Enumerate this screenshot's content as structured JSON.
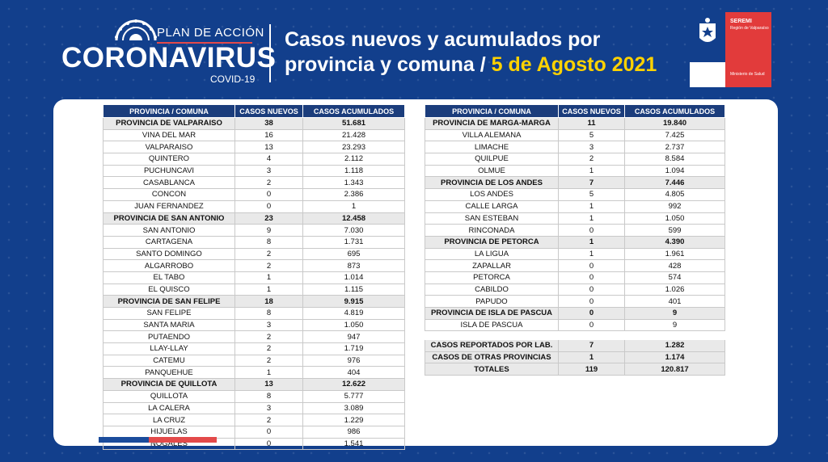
{
  "header": {
    "logo": {
      "plan": "PLAN DE ACCIÓN",
      "name": "CORONAVIRUS",
      "sub": "COVID-19"
    },
    "title_line1": "Casos nuevos y acumulados por",
    "title_line2_prefix": "provincia y comuna / ",
    "title_date": "5 de Agosto 2021",
    "gov": {
      "seremi": "SEREMI",
      "region": "Región de Valparaíso",
      "ministry": "Ministerio de Salud"
    },
    "colors": {
      "background": "#123f8c",
      "date": "#ffd200",
      "header_row": "#1b3d7c",
      "red": "#e34a4a"
    }
  },
  "columns": [
    "PROVINCIA / COMUNA",
    "CASOS NUEVOS",
    "CASOS ACUMULADOS"
  ],
  "left_table": [
    {
      "name": "PROVINCIA DE VALPARAISO",
      "new": "38",
      "total": "51.681",
      "province": true
    },
    {
      "name": "VINA DEL MAR",
      "new": "16",
      "total": "21.428"
    },
    {
      "name": "VALPARAISO",
      "new": "13",
      "total": "23.293"
    },
    {
      "name": "QUINTERO",
      "new": "4",
      "total": "2.112"
    },
    {
      "name": "PUCHUNCAVI",
      "new": "3",
      "total": "1.118"
    },
    {
      "name": "CASABLANCA",
      "new": "2",
      "total": "1.343"
    },
    {
      "name": "CONCON",
      "new": "0",
      "total": "2.386"
    },
    {
      "name": "JUAN FERNANDEZ",
      "new": "0",
      "total": "1"
    },
    {
      "name": "PROVINCIA DE SAN ANTONIO",
      "new": "23",
      "total": "12.458",
      "province": true
    },
    {
      "name": "SAN ANTONIO",
      "new": "9",
      "total": "7.030"
    },
    {
      "name": "CARTAGENA",
      "new": "8",
      "total": "1.731"
    },
    {
      "name": "SANTO DOMINGO",
      "new": "2",
      "total": "695"
    },
    {
      "name": "ALGARROBO",
      "new": "2",
      "total": "873"
    },
    {
      "name": "EL TABO",
      "new": "1",
      "total": "1.014"
    },
    {
      "name": "EL QUISCO",
      "new": "1",
      "total": "1.115"
    },
    {
      "name": "PROVINCIA DE SAN FELIPE",
      "new": "18",
      "total": "9.915",
      "province": true
    },
    {
      "name": "SAN FELIPE",
      "new": "8",
      "total": "4.819"
    },
    {
      "name": "SANTA MARIA",
      "new": "3",
      "total": "1.050"
    },
    {
      "name": "PUTAENDO",
      "new": "2",
      "total": "947"
    },
    {
      "name": "LLAY-LLAY",
      "new": "2",
      "total": "1.719"
    },
    {
      "name": "CATEMU",
      "new": "2",
      "total": "976"
    },
    {
      "name": "PANQUEHUE",
      "new": "1",
      "total": "404"
    },
    {
      "name": "PROVINCIA DE QUILLOTA",
      "new": "13",
      "total": "12.622",
      "province": true
    },
    {
      "name": "QUILLOTA",
      "new": "8",
      "total": "5.777"
    },
    {
      "name": "LA CALERA",
      "new": "3",
      "total": "3.089"
    },
    {
      "name": "LA CRUZ",
      "new": "2",
      "total": "1.229"
    },
    {
      "name": "HIJUELAS",
      "new": "0",
      "total": "986"
    },
    {
      "name": "NOGALES",
      "new": "0",
      "total": "1.541"
    }
  ],
  "right_table": [
    {
      "name": "PROVINCIA DE MARGA-MARGA",
      "new": "11",
      "total": "19.840",
      "province": true
    },
    {
      "name": "VILLA ALEMANA",
      "new": "5",
      "total": "7.425"
    },
    {
      "name": "LIMACHE",
      "new": "3",
      "total": "2.737"
    },
    {
      "name": "QUILPUE",
      "new": "2",
      "total": "8.584"
    },
    {
      "name": "OLMUE",
      "new": "1",
      "total": "1.094"
    },
    {
      "name": "PROVINCIA DE LOS ANDES",
      "new": "7",
      "total": "7.446",
      "province": true
    },
    {
      "name": "LOS ANDES",
      "new": "5",
      "total": "4.805"
    },
    {
      "name": "CALLE LARGA",
      "new": "1",
      "total": "992"
    },
    {
      "name": "SAN ESTEBAN",
      "new": "1",
      "total": "1.050"
    },
    {
      "name": "RINCONADA",
      "new": "0",
      "total": "599"
    },
    {
      "name": "PROVINCIA DE PETORCA",
      "new": "1",
      "total": "4.390",
      "province": true
    },
    {
      "name": "LA LIGUA",
      "new": "1",
      "total": "1.961"
    },
    {
      "name": "ZAPALLAR",
      "new": "0",
      "total": "428"
    },
    {
      "name": "PETORCA",
      "new": "0",
      "total": "574"
    },
    {
      "name": "CABILDO",
      "new": "0",
      "total": "1.026"
    },
    {
      "name": "PAPUDO",
      "new": "0",
      "total": "401"
    },
    {
      "name": "PROVINCIA DE ISLA DE PASCUA",
      "new": "0",
      "total": "9",
      "province": true
    },
    {
      "name": "ISLA DE PASCUA",
      "new": "0",
      "total": "9"
    }
  ],
  "summary": [
    {
      "name": "CASOS REPORTADOS POR LAB.",
      "new": "7",
      "total": "1.282"
    },
    {
      "name": "CASOS DE OTRAS PROVINCIAS",
      "new": "1",
      "total": "1.174"
    },
    {
      "name": "TOTALES",
      "new": "119",
      "total": "120.817"
    }
  ]
}
